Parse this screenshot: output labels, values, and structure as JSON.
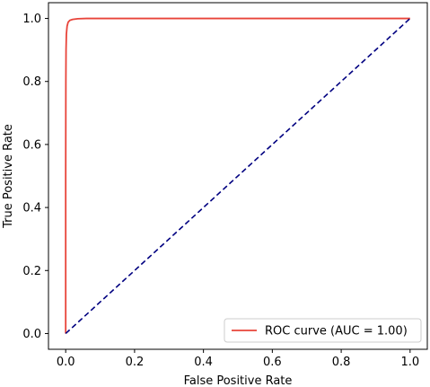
{
  "chart_data": {
    "type": "line",
    "title": "",
    "xlabel": "False Positive Rate",
    "ylabel": "True Positive Rate",
    "xlim": [
      -0.05,
      1.05
    ],
    "ylim": [
      -0.05,
      1.05
    ],
    "xticks": [
      "0.0",
      "0.2",
      "0.4",
      "0.6",
      "0.8",
      "1.0"
    ],
    "yticks": [
      "0.0",
      "0.2",
      "0.4",
      "0.6",
      "0.8",
      "1.0"
    ],
    "xtick_values": [
      0.0,
      0.2,
      0.4,
      0.6,
      0.8,
      1.0
    ],
    "ytick_values": [
      0.0,
      0.2,
      0.4,
      0.6,
      0.8,
      1.0
    ],
    "grid": false,
    "legend_position": "lower-right",
    "series": [
      {
        "name": "ROC curve (AUC = 1.00)",
        "color": "#e8443a",
        "style": "solid",
        "x": [
          0.0,
          0.0,
          0.0005,
          0.001,
          0.002,
          0.004,
          0.007,
          0.012,
          0.02,
          0.035,
          0.06,
          0.1,
          0.2,
          0.4,
          0.6,
          0.8,
          1.0
        ],
        "y": [
          0.0,
          0.5,
          0.8,
          0.9,
          0.95,
          0.975,
          0.988,
          0.994,
          0.997,
          0.999,
          1.0,
          1.0,
          1.0,
          1.0,
          1.0,
          1.0,
          1.0
        ]
      },
      {
        "name": "",
        "color": "#000080",
        "style": "dashed",
        "x": [
          0.0,
          1.0
        ],
        "y": [
          0.0,
          1.0
        ]
      }
    ]
  }
}
